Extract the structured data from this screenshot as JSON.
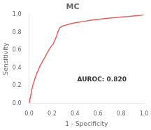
{
  "chart_data": {
    "type": "line",
    "title": "MC",
    "xlabel": "1 - Specificity",
    "ylabel": "Sensitivity",
    "x": [
      0.0,
      0.003,
      0.006,
      0.01,
      0.013,
      0.016,
      0.02,
      0.025,
      0.03,
      0.035,
      0.04,
      0.048,
      0.055,
      0.063,
      0.07,
      0.078,
      0.085,
      0.092,
      0.1,
      0.108,
      0.115,
      0.122,
      0.13,
      0.138,
      0.145,
      0.152,
      0.16,
      0.168,
      0.175,
      0.183,
      0.19,
      0.198,
      0.21,
      0.22,
      0.23,
      0.24,
      0.255,
      0.27,
      0.285,
      0.3,
      0.32,
      0.34,
      0.36,
      0.385,
      0.41,
      0.44,
      0.47,
      0.5,
      0.54,
      0.58,
      0.62,
      0.66,
      0.7,
      0.75,
      0.8,
      0.86,
      0.92,
      0.97,
      1.0
    ],
    "values": [
      0.0,
      0.02,
      0.04,
      0.06,
      0.08,
      0.1,
      0.13,
      0.16,
      0.185,
      0.21,
      0.23,
      0.265,
      0.295,
      0.32,
      0.345,
      0.368,
      0.39,
      0.412,
      0.432,
      0.45,
      0.468,
      0.485,
      0.502,
      0.52,
      0.538,
      0.555,
      0.572,
      0.59,
      0.607,
      0.622,
      0.638,
      0.653,
      0.668,
      0.7,
      0.73,
      0.76,
      0.82,
      0.855,
      0.868,
      0.876,
      0.883,
      0.89,
      0.898,
      0.905,
      0.912,
      0.918,
      0.924,
      0.93,
      0.938,
      0.944,
      0.95,
      0.956,
      0.962,
      0.968,
      0.974,
      0.98,
      0.988,
      0.994,
      1.0
    ],
    "color": "#e06060",
    "xlim": [
      0.0,
      1.0
    ],
    "ylim": [
      0.0,
      1.0
    ],
    "xticks": [
      {
        "value": 0,
        "label": "0.0"
      },
      0.2,
      0.4,
      0.6,
      0.8,
      {
        "value": 1,
        "label": "1.0"
      }
    ],
    "yticks": [
      {
        "value": 0,
        "label": "0.0"
      },
      0.2,
      0.4,
      0.6,
      0.8,
      {
        "value": 1,
        "label": "1.0"
      }
    ],
    "annotations": [
      {
        "text": "AUROC: 0.820",
        "x": 0.42,
        "y": 0.27
      }
    ],
    "grid": false
  }
}
